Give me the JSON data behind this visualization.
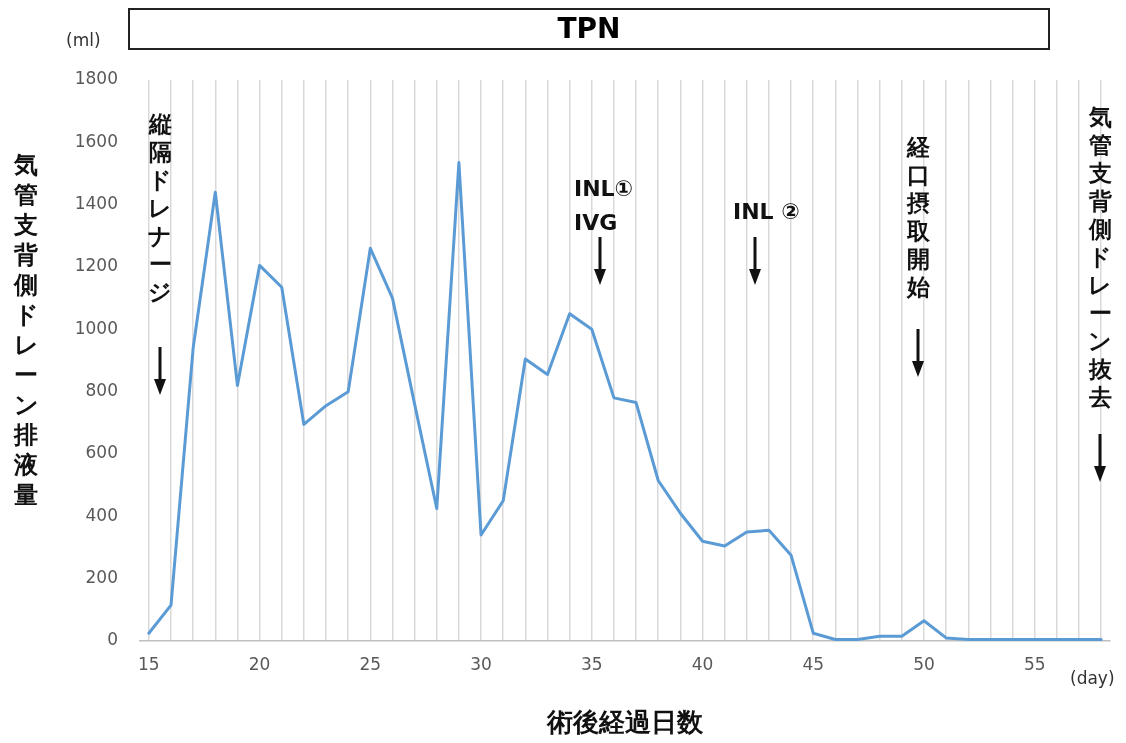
{
  "chart_data": {
    "type": "line",
    "title": "TPN",
    "xlabel": "術後経過日数",
    "ylabel": "気管支背側ドレーン排液量",
    "x": [
      15,
      16,
      17,
      18,
      19,
      20,
      21,
      22,
      23,
      24,
      25,
      26,
      27,
      28,
      29,
      30,
      31,
      32,
      33,
      34,
      35,
      36,
      37,
      38,
      39,
      40,
      41,
      42,
      43,
      44,
      45,
      46,
      47,
      48,
      49,
      50,
      51,
      52,
      53,
      54,
      55,
      56,
      57,
      58
    ],
    "series": [
      {
        "color": "#5b9bd5",
        "values": [
          25,
          115,
          940,
          1440,
          820,
          1205,
          1135,
          695,
          755,
          800,
          1260,
          1100,
          760,
          425,
          1535,
          340,
          450,
          905,
          855,
          1050,
          1000,
          780,
          765,
          515,
          410,
          320,
          305,
          350,
          355,
          275,
          25,
          5,
          5,
          15,
          15,
          65,
          10,
          5,
          5,
          5,
          5,
          5,
          5,
          5
        ]
      }
    ],
    "xlim": [
      14.6,
      58.4
    ],
    "xticks": [
      15,
      {
        "value": 16,
        "label": null
      },
      {
        "value": 17,
        "label": null
      },
      {
        "value": 18,
        "label": null
      },
      {
        "value": 19,
        "label": null
      },
      20,
      {
        "value": 21,
        "label": null
      },
      {
        "value": 22,
        "label": null
      },
      {
        "value": 23,
        "label": null
      },
      {
        "value": 24,
        "label": null
      },
      25,
      {
        "value": 26,
        "label": null
      },
      {
        "value": 27,
        "label": null
      },
      {
        "value": 28,
        "label": null
      },
      {
        "value": 29,
        "label": null
      },
      30,
      {
        "value": 31,
        "label": null
      },
      {
        "value": 32,
        "label": null
      },
      {
        "value": 33,
        "label": null
      },
      {
        "value": 34,
        "label": null
      },
      35,
      {
        "value": 36,
        "label": null
      },
      {
        "value": 37,
        "label": null
      },
      {
        "value": 38,
        "label": null
      },
      {
        "value": 39,
        "label": null
      },
      40,
      {
        "value": 41,
        "label": null
      },
      {
        "value": 42,
        "label": null
      },
      {
        "value": 43,
        "label": null
      },
      {
        "value": 44,
        "label": null
      },
      45,
      {
        "value": 46,
        "label": null
      },
      {
        "value": 47,
        "label": null
      },
      {
        "value": 48,
        "label": null
      },
      {
        "value": 49,
        "label": null
      },
      50,
      {
        "value": 51,
        "label": null
      },
      {
        "value": 52,
        "label": null
      },
      {
        "value": 53,
        "label": null
      },
      {
        "value": 54,
        "label": null
      },
      55,
      {
        "value": 56,
        "label": null
      },
      {
        "value": 57,
        "label": null
      },
      {
        "value": 58,
        "label": null
      }
    ],
    "ylim": [
      0,
      1800
    ],
    "yticks": [
      0,
      200,
      400,
      600,
      800,
      1000,
      1200,
      1400,
      1600,
      1800
    ],
    "grid": "x",
    "legend": false,
    "marker": "none",
    "line_style": "solid",
    "annotations": [
      "(ml)",
      "(day)",
      "縦隔ドレナージ",
      "INL①\nIVG",
      "INL ②",
      "経口摂取開始",
      "気管支背側ドレーン抜去"
    ]
  }
}
